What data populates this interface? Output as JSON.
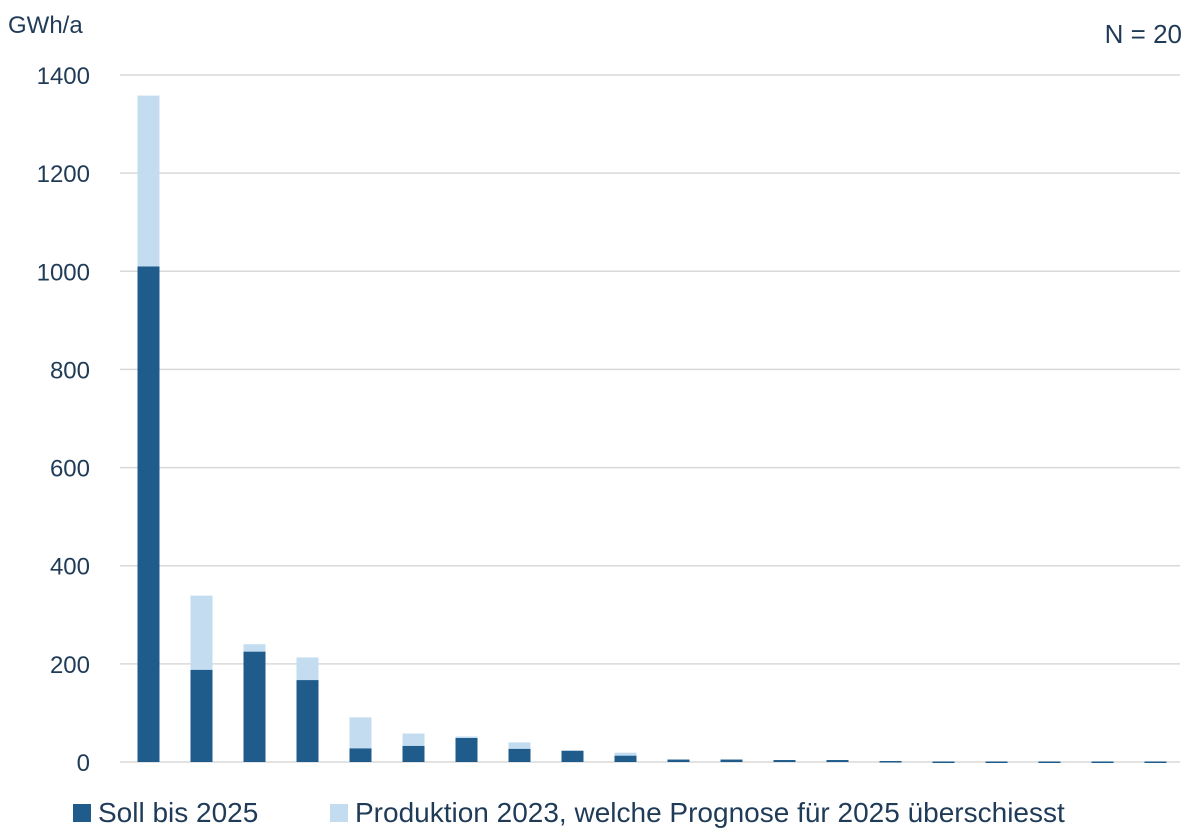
{
  "chart_data": {
    "type": "bar",
    "stacked": true,
    "ylabel": "GWh/a",
    "annotation": "N = 20",
    "ylim": [
      0,
      1400
    ],
    "yticks": [
      0,
      200,
      400,
      600,
      800,
      1000,
      1200,
      1400
    ],
    "grid": true,
    "legend_position": "bottom",
    "categories": [
      "",
      "",
      "",
      "",
      "",
      "",
      "",
      "",
      "",
      "",
      "",
      "",
      "",
      "",
      "",
      "",
      "",
      "",
      "",
      ""
    ],
    "series": [
      {
        "name": "Soll bis 2025",
        "color": "#1f5c8b",
        "values": [
          1010,
          188,
          225,
          167,
          28,
          33,
          49,
          27,
          23,
          13,
          5,
          5,
          4,
          4,
          2,
          1,
          1,
          1,
          1,
          1
        ]
      },
      {
        "name": "Produktion 2023, welche Prognose für 2025 überschiesst",
        "color": "#c3dcf0",
        "values": [
          348,
          151,
          15,
          46,
          63,
          25,
          3,
          13,
          0,
          6,
          0,
          0,
          0,
          0,
          0,
          0,
          0,
          0,
          0,
          0
        ]
      }
    ]
  }
}
